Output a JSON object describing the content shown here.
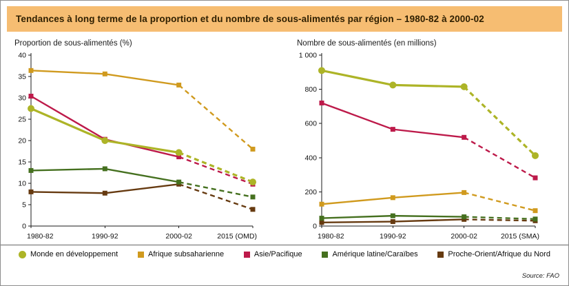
{
  "card": {
    "title": "Tendances à long terme de la proportion et du nombre de sous-alimentés par région – 1980-82 à 2000-02",
    "source": "Source: FAO"
  },
  "colors": {
    "title_bar_bg": "#F6BD72",
    "title_text": "#2E1F00",
    "axis": "#1A1A1A",
    "border": "#8C8C8C",
    "monde": "#ADB427",
    "afrique_subsaharienne": "#D09A1E",
    "asie_pacifique": "#BD1A4A",
    "amerique_latine": "#45701F",
    "proche_orient": "#663A10"
  },
  "legend": {
    "position": "bottom",
    "items": [
      {
        "label": "Monde en développement",
        "color": "#ADB427",
        "marker": "circle"
      },
      {
        "label": "Afrique subsaharienne",
        "color": "#D09A1E",
        "marker": "square"
      },
      {
        "label": "Asie/Pacifique",
        "color": "#BD1A4A",
        "marker": "square"
      },
      {
        "label": "Amérique latine/Caraïbes",
        "color": "#45701F",
        "marker": "square"
      },
      {
        "label": "Proche-Orient/Afrique du Nord",
        "color": "#663A10",
        "marker": "square"
      }
    ]
  },
  "chart_data": [
    {
      "type": "line",
      "name": "proportion-chart",
      "title": "Proportion de sous-alimentés (%)",
      "categories": [
        "1980-82",
        "1990-92",
        "2000-02",
        "2015 (OMD)"
      ],
      "ylim": [
        0,
        40
      ],
      "yticks": [
        0,
        5,
        10,
        15,
        20,
        25,
        30,
        35,
        40
      ],
      "ytick_labels": [
        "0",
        "5",
        "10",
        "15",
        "20",
        "25",
        "30",
        "35",
        "40"
      ],
      "grid": false,
      "dash_from_index": 2,
      "series": [
        {
          "name": "Monde en développement",
          "color": "#ADB427",
          "marker": "circle",
          "width": 3.2,
          "values": [
            27.5,
            20.0,
            17.2,
            10.3
          ]
        },
        {
          "name": "Afrique subsaharienne",
          "color": "#D09A1E",
          "marker": "square",
          "width": 2.4,
          "values": [
            36.4,
            35.6,
            33.0,
            18.0
          ]
        },
        {
          "name": "Asie/Pacifique",
          "color": "#BD1A4A",
          "marker": "square",
          "width": 2.4,
          "values": [
            30.4,
            20.3,
            16.2,
            9.8
          ]
        },
        {
          "name": "Amérique latine/Caraïbes",
          "color": "#45701F",
          "marker": "square",
          "width": 2.4,
          "values": [
            13.0,
            13.4,
            10.3,
            6.8
          ]
        },
        {
          "name": "Proche-Orient/Afrique du Nord",
          "color": "#663A10",
          "marker": "square",
          "width": 2.4,
          "values": [
            8.0,
            7.7,
            9.8,
            3.9
          ]
        }
      ]
    },
    {
      "type": "line",
      "name": "nombre-chart",
      "title": "Nombre de sous-alimentés (en millions)",
      "categories": [
        "1980-82",
        "1990-92",
        "2000-02",
        "2015 (SMA)"
      ],
      "ylim": [
        0,
        1000
      ],
      "yticks": [
        0,
        200,
        400,
        600,
        800,
        1000
      ],
      "ytick_labels": [
        "0",
        "200",
        "400",
        "600",
        "800",
        "1 000"
      ],
      "grid": false,
      "dash_from_index": 2,
      "series": [
        {
          "name": "Monde en développement",
          "color": "#ADB427",
          "marker": "circle",
          "width": 3.2,
          "values": [
            910,
            825,
            815,
            412
          ]
        },
        {
          "name": "Afrique subsaharienne",
          "color": "#D09A1E",
          "marker": "square",
          "width": 2.4,
          "values": [
            128,
            166,
            196,
            90
          ]
        },
        {
          "name": "Asie/Pacifique",
          "color": "#BD1A4A",
          "marker": "square",
          "width": 2.4,
          "values": [
            720,
            566,
            519,
            282
          ]
        },
        {
          "name": "Amérique latine/Caraïbes",
          "color": "#45701F",
          "marker": "square",
          "width": 2.4,
          "values": [
            46,
            60,
            54,
            41
          ]
        },
        {
          "name": "Proche-Orient/Afrique du Nord",
          "color": "#663A10",
          "marker": "square",
          "width": 2.4,
          "values": [
            21,
            26,
            39,
            31
          ]
        }
      ]
    }
  ]
}
